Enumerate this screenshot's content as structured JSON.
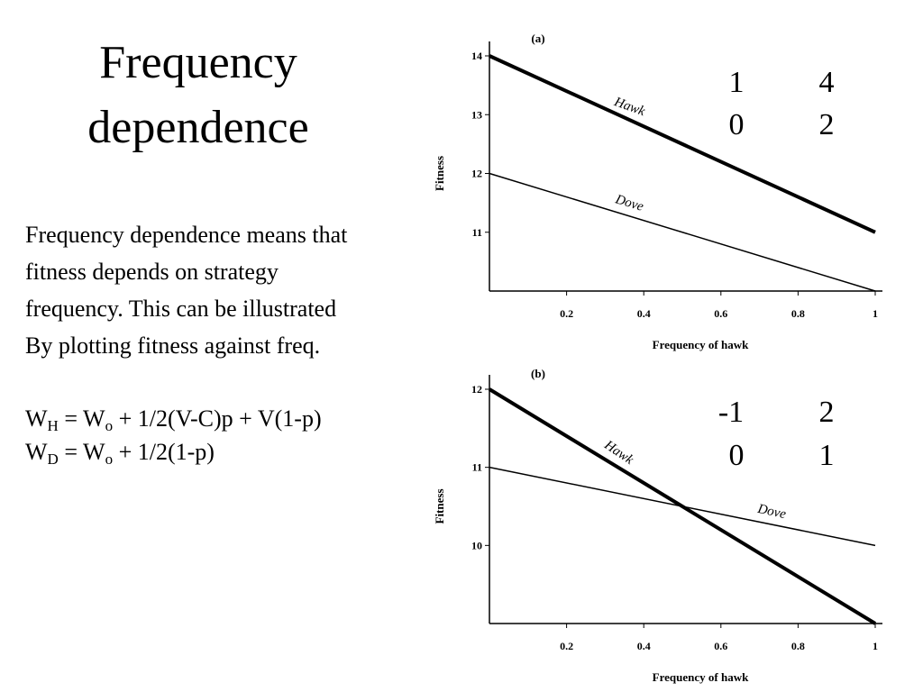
{
  "slide": {
    "title_line1": "Frequency",
    "title_line2": "dependence",
    "paragraph": [
      "Frequency dependence means that",
      "fitness depends on strategy",
      "frequency.  This can be illustrated",
      "By plotting fitness against freq."
    ],
    "equation_wh": {
      "w": "W",
      "sub_h": "H",
      "eq": " = W",
      "sub_o": "o",
      "rest": " + 1/2(V-C)p + V(1-p)"
    },
    "equation_wd": {
      "w": "W",
      "sub_d": "D",
      "eq": " = W",
      "sub_o": "o",
      "rest": " + 1/2(1-p)"
    },
    "matrix_a": {
      "r1c1": "1",
      "r1c2": "4",
      "r2c1": "0",
      "r2c2": "2"
    },
    "matrix_b": {
      "r1c1": "-1",
      "r1c2": "2",
      "r2c1": "0",
      "r2c2": "1"
    }
  },
  "chart_data": [
    {
      "type": "line",
      "panel_label": "(a)",
      "xlabel": "Frequency of hawk",
      "ylabel": "Fitness",
      "xlim": [
        0,
        1
      ],
      "ylim": [
        10,
        14
      ],
      "x_ticks": [
        "0.2",
        "0.4",
        "0.6",
        "0.8",
        "1"
      ],
      "y_ticks": [
        "11",
        "12",
        "13",
        "14"
      ],
      "series": [
        {
          "name": "Hawk",
          "x": [
            0,
            1
          ],
          "y": [
            14,
            11
          ],
          "style": "thick"
        },
        {
          "name": "Dove",
          "x": [
            0,
            1
          ],
          "y": [
            12,
            10
          ],
          "style": "thin"
        }
      ]
    },
    {
      "type": "line",
      "panel_label": "(b)",
      "xlabel": "Frequency of hawk",
      "ylabel": "Fitness",
      "xlim": [
        0,
        1
      ],
      "ylim": [
        9,
        12
      ],
      "x_ticks": [
        "0.2",
        "0.4",
        "0.6",
        "0.8",
        "1"
      ],
      "y_ticks": [
        "10",
        "11",
        "12"
      ],
      "series": [
        {
          "name": "Hawk",
          "x": [
            0,
            1
          ],
          "y": [
            12,
            9
          ],
          "style": "thick"
        },
        {
          "name": "Dove",
          "x": [
            0,
            1
          ],
          "y": [
            11,
            10
          ],
          "style": "thin"
        }
      ]
    }
  ]
}
